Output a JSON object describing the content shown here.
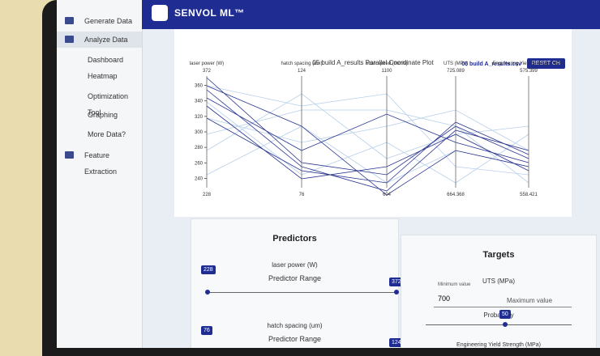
{
  "sidebar": {
    "items": [
      "Generate Data",
      "Analyze Data",
      "Dashboard",
      "Heatmap",
      "Optimization Tool",
      "Graphing",
      "More Data?",
      "Feature Extraction"
    ]
  },
  "header": {
    "brand": "SENVOL ML™",
    "file": "05 build A_results.csv",
    "button": "RESET CH"
  },
  "plot": {
    "title": "05 build A_results Parallel Coordinate Plot",
    "axes": [
      {
        "label": "laser power (W)",
        "top": 372,
        "bottom": 228,
        "ticks": [
          240,
          260,
          280,
          300,
          320,
          340,
          360
        ]
      },
      {
        "label": "hatch spacing (um)",
        "top": 124,
        "bottom": 76
      },
      {
        "label": "scan speed (mm/s)",
        "top": 1100,
        "bottom": 604
      },
      {
        "label": "UTS (MPa)",
        "top": 725.089,
        "bottom": 664.368
      },
      {
        "label": "Engineering Yield Strength (MPa)",
        "top": 575.399,
        "bottom": 558.421
      }
    ]
  },
  "predictors": {
    "title": "Predictors",
    "items": [
      {
        "label": "laser power (W)",
        "range": "Predictor Range",
        "min": 228,
        "max": 372
      },
      {
        "label": "hatch spacing (um)",
        "range": "Predictor Range",
        "min": 76,
        "max": 124
      }
    ]
  },
  "targets": {
    "title": "Targets",
    "item": "UTS (MPa)",
    "min_label": "Minimum value",
    "min": 700,
    "max_label": "Maximum value",
    "prob_label": "Probability",
    "prob": 50,
    "next": "Engineering Yield Strength (MPa)"
  }
}
